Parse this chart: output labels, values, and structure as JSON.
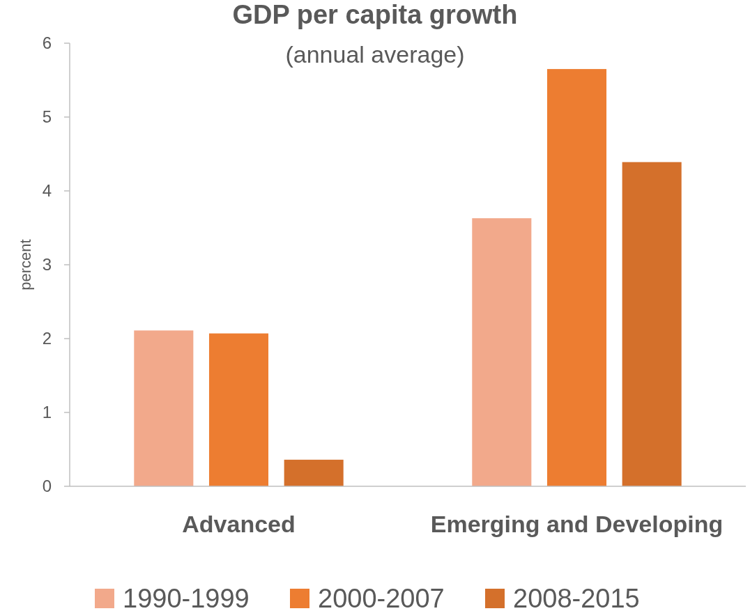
{
  "chart_data": {
    "type": "bar",
    "title": "GDP per capita growth",
    "subtitle": "(annual average)",
    "ylabel": "percent",
    "categories": [
      "Advanced",
      "Emerging and Developing"
    ],
    "series": [
      {
        "name": "1990-1999",
        "color": "#f2a98b",
        "values": [
          2.11,
          3.63
        ]
      },
      {
        "name": "2000-2007",
        "color": "#ed7d31",
        "values": [
          2.07,
          5.65
        ]
      },
      {
        "name": "2008-2015",
        "color": "#d4702b",
        "values": [
          0.36,
          4.39
        ]
      }
    ],
    "ylim": [
      0,
      6
    ],
    "yticks": [
      0,
      1,
      2,
      3,
      4,
      5,
      6
    ],
    "grid": false,
    "legend": "bottom"
  }
}
